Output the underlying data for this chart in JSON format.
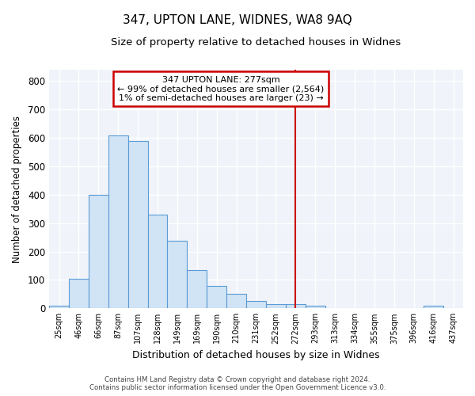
{
  "title": "347, UPTON LANE, WIDNES, WA8 9AQ",
  "subtitle": "Size of property relative to detached houses in Widnes",
  "xlabel": "Distribution of detached houses by size in Widnes",
  "ylabel": "Number of detached properties",
  "categories": [
    "25sqm",
    "46sqm",
    "66sqm",
    "87sqm",
    "107sqm",
    "128sqm",
    "149sqm",
    "169sqm",
    "190sqm",
    "210sqm",
    "231sqm",
    "252sqm",
    "272sqm",
    "293sqm",
    "313sqm",
    "334sqm",
    "355sqm",
    "375sqm",
    "396sqm",
    "416sqm",
    "437sqm"
  ],
  "values": [
    8,
    105,
    400,
    610,
    590,
    330,
    237,
    135,
    78,
    50,
    25,
    15,
    15,
    8,
    0,
    0,
    0,
    0,
    0,
    8,
    0
  ],
  "bar_color": "#d0e4f5",
  "bar_edge_color": "#5b9bd5",
  "red_line_index": 12,
  "red_line_color": "#cc0000",
  "ylim": [
    0,
    840
  ],
  "yticks": [
    0,
    100,
    200,
    300,
    400,
    500,
    600,
    700,
    800
  ],
  "background_color": "#ffffff",
  "plot_bg_color": "#f0f4fa",
  "grid_color": "#ffffff",
  "legend_title": "347 UPTON LANE: 277sqm",
  "legend_line1": "← 99% of detached houses are smaller (2,564)",
  "legend_line2": "1% of semi-detached houses are larger (23) →",
  "legend_box_color": "#ffffff",
  "legend_box_edge_color": "#cc0000",
  "footer_line1": "Contains HM Land Registry data © Crown copyright and database right 2024.",
  "footer_line2": "Contains public sector information licensed under the Open Government Licence v3.0."
}
